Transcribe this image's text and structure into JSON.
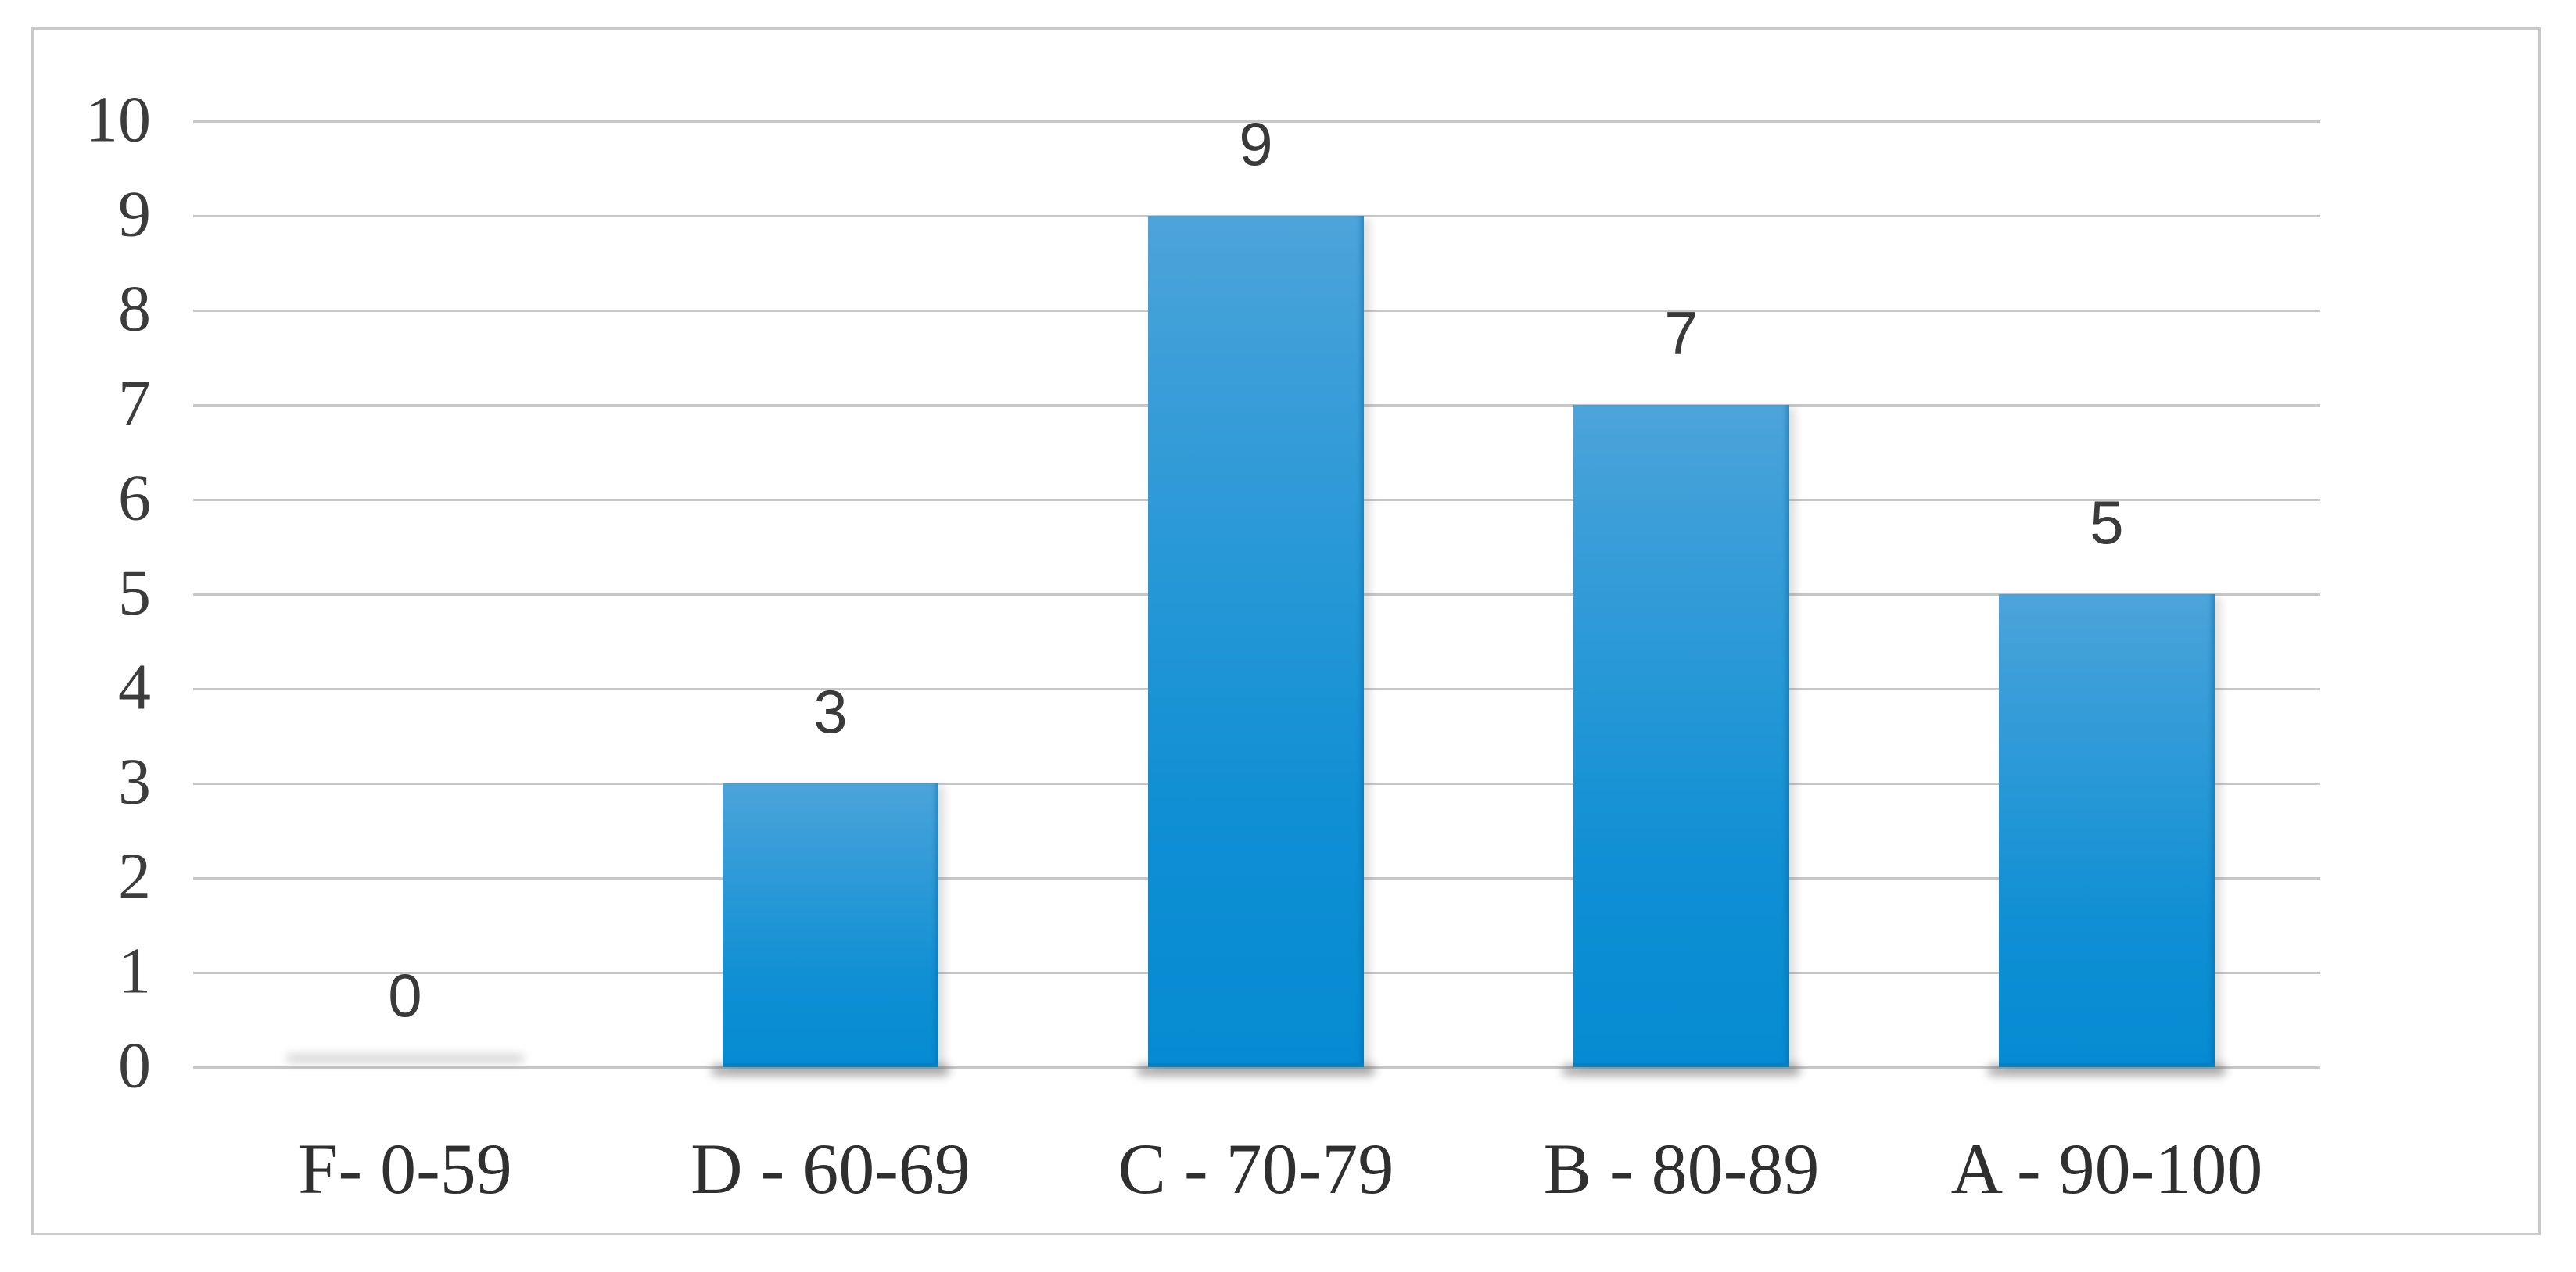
{
  "chart_data": {
    "type": "bar",
    "title": "",
    "xlabel": "",
    "ylabel": "",
    "categories": [
      "F- 0-59",
      "D - 60-69",
      "C - 70-79",
      "B - 80-89",
      "A - 90-100"
    ],
    "values": [
      0,
      3,
      9,
      7,
      5
    ],
    "data_labels": [
      "0",
      "3",
      "9",
      "7",
      "5"
    ],
    "yticks": [
      0,
      1,
      2,
      3,
      4,
      5,
      6,
      7,
      8,
      9,
      10
    ],
    "ytick_labels": [
      "0",
      "1",
      "2",
      "3",
      "4",
      "5",
      "6",
      "7",
      "8",
      "9",
      "10"
    ],
    "ylim": [
      0,
      10
    ],
    "grid": true,
    "gridline_orientation": "horizontal",
    "legend": false,
    "data_label_position": "outside-end",
    "bar_color_top": "#4da4da",
    "bar_color_bottom": "#068bd2",
    "bar_edge_color": "#0680bf",
    "gridline_color": "#c7c7c7",
    "frame_border_color": "#c9c9c9",
    "axis_text_color": "#3c3c3c",
    "background_color": "#ffffff"
  }
}
